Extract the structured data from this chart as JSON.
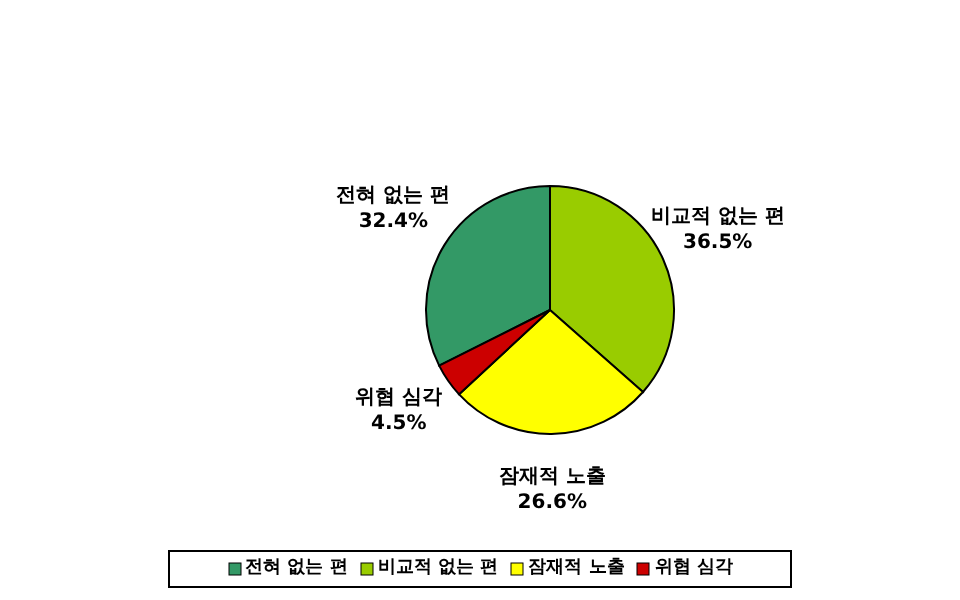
{
  "chart_data": {
    "type": "pie",
    "categories": [
      "전혀 없는 편",
      "비교적 없는 편",
      "잠재적 노출",
      "위협 심각"
    ],
    "values": [
      32.4,
      36.5,
      26.6,
      4.5
    ],
    "value_labels": [
      "32.4%",
      "36.5%",
      "26.6%",
      "4.5%"
    ],
    "colors": [
      "#339966",
      "#99cc00",
      "#ffff00",
      "#cc0000"
    ],
    "legend": "bottom"
  }
}
